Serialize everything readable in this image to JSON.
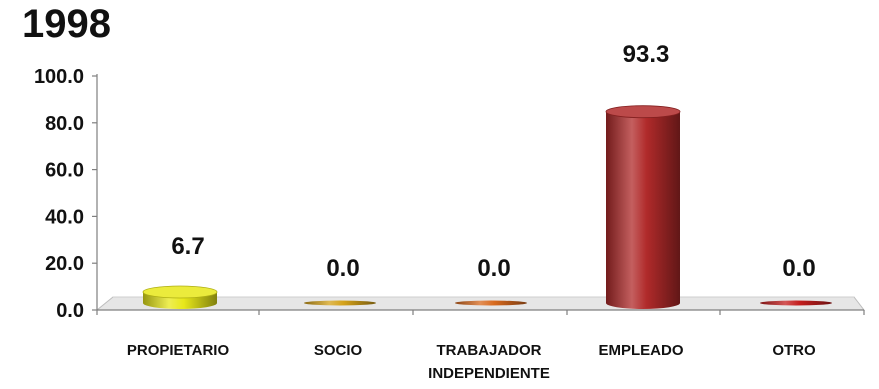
{
  "chart_data": {
    "type": "bar",
    "title": "1998",
    "categories": [
      "PROPIETARIO",
      "SOCIO",
      "TRABAJADOR INDEPENDIENTE",
      "EMPLEADO",
      "OTRO"
    ],
    "category_lines": [
      [
        "PROPIETARIO"
      ],
      [
        "SOCIO"
      ],
      [
        "TRABAJADOR",
        "INDEPENDIENTE"
      ],
      [
        "EMPLEADO"
      ],
      [
        "OTRO"
      ]
    ],
    "values": [
      6.7,
      0.0,
      0.0,
      93.3,
      0.0
    ],
    "value_labels": [
      "6.7",
      "0.0",
      "0.0",
      "93.3",
      "0.0"
    ],
    "ylim": [
      0,
      100
    ],
    "yticks": [
      "0.0",
      "20.0",
      "40.0",
      "60.0",
      "80.0",
      "100.0"
    ],
    "grid": false,
    "legend": "none",
    "style": "3d-cylinder",
    "colors": [
      "#e8e81a",
      "#d4a21a",
      "#d86a1e",
      "#b02a2a",
      "#c41e1e"
    ]
  }
}
